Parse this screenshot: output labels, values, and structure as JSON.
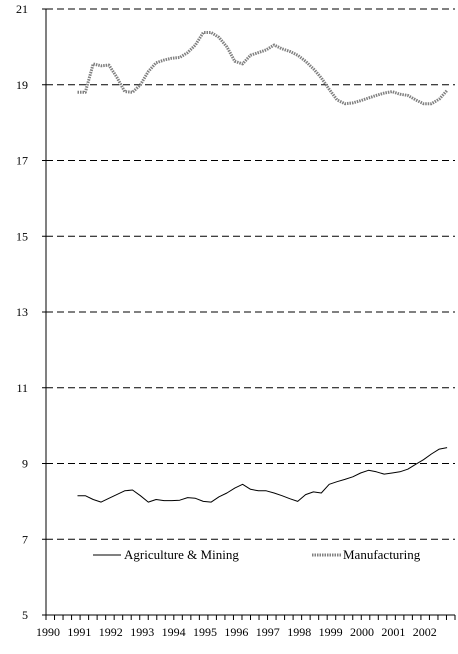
{
  "chart_data": {
    "type": "line",
    "title": "",
    "xlabel": "",
    "ylabel": "",
    "ylim": [
      5,
      21
    ],
    "yticks": [
      5,
      7,
      9,
      11,
      13,
      15,
      17,
      19,
      21
    ],
    "xlim": [
      1990,
      2003
    ],
    "xtick_labels": [
      "1990",
      "1991",
      "1992",
      "1993",
      "1994",
      "1995",
      "1996",
      "1997",
      "1998",
      "1999",
      "2000",
      "2001",
      "2002"
    ],
    "grid": "horizontal dashed lines at 9, 11, 13, 15, 17, 19, 21",
    "legend_position": "bottom, inside plot",
    "series": [
      {
        "name": "Agriculture & Mining",
        "color": "#000000",
        "style": "thin solid",
        "x": [
          1991.0,
          1991.25,
          1991.5,
          1991.75,
          1992.0,
          1992.25,
          1992.5,
          1992.75,
          1993.0,
          1993.25,
          1993.5,
          1993.75,
          1994.0,
          1994.25,
          1994.5,
          1994.75,
          1995.0,
          1995.25,
          1995.5,
          1995.75,
          1996.0,
          1996.25,
          1996.5,
          1996.75,
          1997.0,
          1997.25,
          1997.5,
          1997.75,
          1998.0,
          1998.25,
          1998.5,
          1998.75,
          1999.0,
          1999.25,
          1999.5,
          1999.75,
          2000.0,
          2000.25,
          2000.5,
          2000.75,
          2001.0,
          2001.25,
          2001.5,
          2001.75,
          2002.0,
          2002.25,
          2002.5,
          2002.75
        ],
        "values": [
          8.15,
          8.15,
          8.05,
          7.98,
          8.08,
          8.18,
          8.28,
          8.3,
          8.15,
          7.98,
          8.05,
          8.02,
          8.02,
          8.03,
          8.1,
          8.08,
          8.0,
          7.98,
          8.12,
          8.22,
          8.35,
          8.45,
          8.32,
          8.28,
          8.28,
          8.22,
          8.15,
          8.07,
          8.0,
          8.18,
          8.25,
          8.22,
          8.45,
          8.52,
          8.58,
          8.65,
          8.75,
          8.82,
          8.78,
          8.72,
          8.75,
          8.78,
          8.85,
          8.98,
          9.1,
          9.25,
          9.38,
          9.42
        ]
      },
      {
        "name": "Manufacturing",
        "color": "#808080",
        "style": "thick dotted",
        "x": [
          1991.0,
          1991.25,
          1991.5,
          1991.75,
          1992.0,
          1992.25,
          1992.5,
          1992.75,
          1993.0,
          1993.25,
          1993.5,
          1993.75,
          1994.0,
          1994.25,
          1994.5,
          1994.75,
          1995.0,
          1995.25,
          1995.5,
          1995.75,
          1996.0,
          1996.25,
          1996.5,
          1996.75,
          1997.0,
          1997.25,
          1997.5,
          1997.75,
          1998.0,
          1998.25,
          1998.5,
          1998.75,
          1999.0,
          1999.25,
          1999.5,
          1999.75,
          2000.0,
          2000.25,
          2000.5,
          2000.75,
          2001.0,
          2001.25,
          2001.5,
          2001.75,
          2002.0,
          2002.25,
          2002.5,
          2002.75
        ],
        "values": [
          18.8,
          18.8,
          19.55,
          19.5,
          19.52,
          19.2,
          18.82,
          18.8,
          19.0,
          19.35,
          19.58,
          19.65,
          19.7,
          19.72,
          19.85,
          20.05,
          20.38,
          20.38,
          20.25,
          20.0,
          19.62,
          19.55,
          19.78,
          19.85,
          19.92,
          20.05,
          19.95,
          19.88,
          19.78,
          19.62,
          19.42,
          19.18,
          18.88,
          18.6,
          18.5,
          18.52,
          18.58,
          18.65,
          18.72,
          18.78,
          18.82,
          18.75,
          18.72,
          18.6,
          18.5,
          18.5,
          18.62,
          18.85
        ]
      }
    ]
  }
}
